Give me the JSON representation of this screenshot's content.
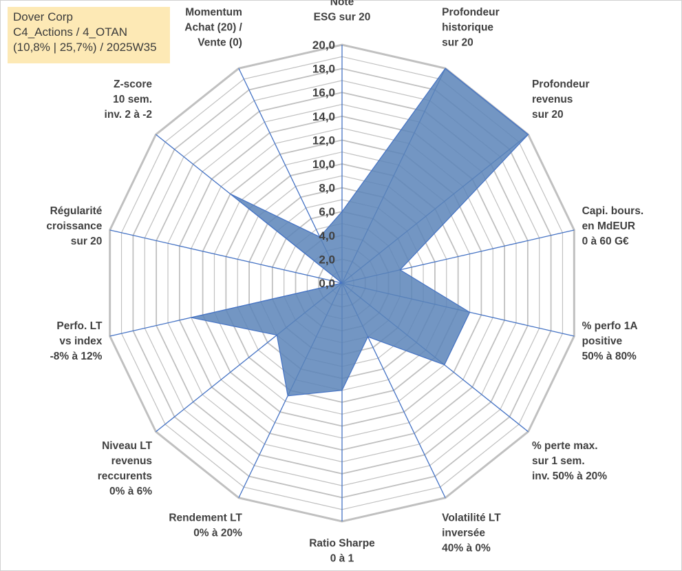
{
  "infobox": {
    "line1": "Dover Corp",
    "line2": "C4_Actions / 4_OTAN",
    "line3": "(10,8% | 25,7%) / 2025W35"
  },
  "colors": {
    "grid": "#c0c0c0",
    "spoke": "#4472c4",
    "fill": "#5b84b8",
    "infobox": "#fde9b5"
  },
  "chart_data": {
    "type": "radar",
    "rmin": 0,
    "rmax": 20,
    "tick_step": 2,
    "tick_labels": [
      "0,0",
      "2,0",
      "4,0",
      "6,0",
      "8,0",
      "10,0",
      "12,0",
      "14,0",
      "16,0",
      "18,0",
      "20,0"
    ],
    "axes": [
      [
        "Note",
        "ESG sur 20"
      ],
      [
        "Profondeur",
        "historique",
        "sur 20"
      ],
      [
        "Profondeur",
        "revenus",
        "sur 20"
      ],
      [
        "Capi. bours.",
        "en MdEUR",
        "0 à 60 G€"
      ],
      [
        "% perfo 1A",
        "positive",
        "50% à 80%"
      ],
      [
        "% perte max.",
        "sur 1 sem.",
        "inv. 50% à 20%"
      ],
      [
        "Volatilité LT",
        "inversée",
        "40% à 0%"
      ],
      [
        "Ratio Sharpe",
        "0 à 1"
      ],
      [
        "Rendement LT",
        "0% à 20%"
      ],
      [
        "Niveau LT",
        "revenus",
        "reccurents",
        "0% à 6%"
      ],
      [
        "Perfo. LT",
        "vs index",
        "-8% à 12%"
      ],
      [
        "Régularité",
        "croissance",
        "sur 20"
      ],
      [
        "Z-score",
        "10 sem.",
        "inv. 2 à -2"
      ],
      [
        "Momentum",
        "Achat (20) /",
        "Vente (0)"
      ]
    ],
    "series": [
      {
        "values": [
          6.0,
          20.0,
          20.0,
          5.0,
          11.0,
          11.0,
          5.0,
          9.0,
          10.5,
          7.0,
          13.0,
          0.0,
          12.0,
          4.3
        ]
      }
    ]
  }
}
